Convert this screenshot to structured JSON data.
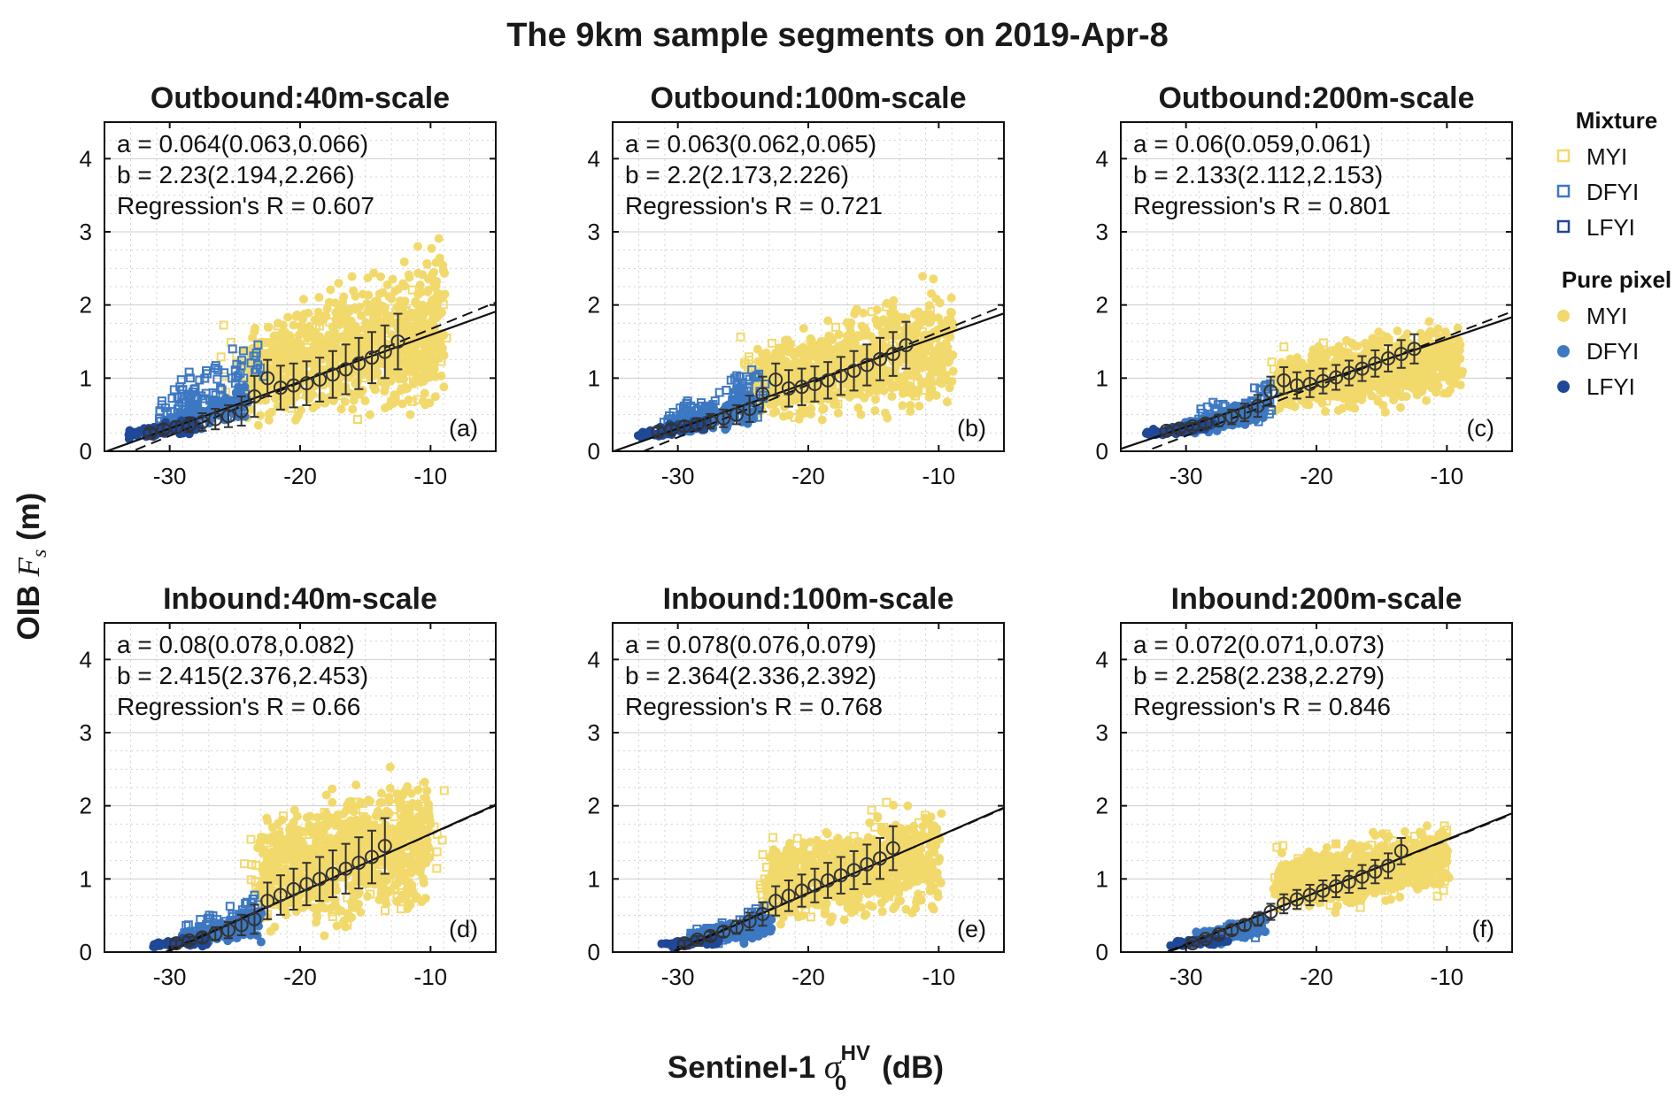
{
  "figure_title": "The 9km sample segments on 2019-Apr-8",
  "y_axis_label": {
    "prefix": "OIB",
    "symbol": "F",
    "subscript": "s",
    "unit": "(m)"
  },
  "x_axis_label": {
    "prefix": "Sentinel-1",
    "symbol": "σ",
    "subscript": "0",
    "superscript": "HV",
    "unit": "(dB)"
  },
  "legend": {
    "groups": [
      {
        "title": "Mixture",
        "marker": "square-open",
        "items": [
          {
            "label": "MYI",
            "color": "#f2d96b"
          },
          {
            "label": "DFYI",
            "color": "#3d78c2"
          },
          {
            "label": "LFYI",
            "color": "#1f4896"
          }
        ]
      },
      {
        "title": "Pure pixel",
        "marker": "circle-filled",
        "items": [
          {
            "label": "MYI",
            "color": "#f2d96b"
          },
          {
            "label": "DFYI",
            "color": "#3d78c2"
          },
          {
            "label": "LFYI",
            "color": "#1f4896"
          }
        ]
      }
    ]
  },
  "colors": {
    "myi": "#f2d96b",
    "dfyi": "#3d78c2",
    "lfyi": "#1f4896",
    "fit": "#111111",
    "grid": "#c8c8c8"
  },
  "chart_data": [
    {
      "type": "scatter",
      "panel_label": "(a)",
      "title": "Outbound:40m-scale",
      "a_line": "a = 0.064(0.063,0.066)",
      "b_line": "b = 2.23(2.194,2.266)",
      "r_line": "Regression's R = 0.607",
      "a": 0.064,
      "b": 2.23,
      "r": 0.607,
      "dashed_slope": 0.073,
      "dashed_intercept": 2.4,
      "xlim": [
        -35,
        -5
      ],
      "ylim": [
        0,
        4.5
      ],
      "xticks": [
        -30,
        -20,
        -10
      ],
      "yticks": [
        0,
        1,
        2,
        3,
        4
      ],
      "bins_x": [
        -31.5,
        -30.5,
        -29.5,
        -28.5,
        -27.5,
        -26.5,
        -25.5,
        -24.5,
        -23.5,
        -22.5,
        -21.5,
        -20.5,
        -19.5,
        -18.5,
        -17.5,
        -16.5,
        -15.5,
        -14.5,
        -13.5,
        -12.5
      ],
      "bins_mean": [
        0.25,
        0.3,
        0.33,
        0.36,
        0.4,
        0.44,
        0.48,
        0.55,
        0.75,
        1.0,
        0.87,
        0.9,
        0.93,
        0.98,
        1.05,
        1.12,
        1.2,
        1.28,
        1.36,
        1.5
      ],
      "bins_std": [
        0.05,
        0.06,
        0.08,
        0.1,
        0.12,
        0.14,
        0.15,
        0.2,
        0.28,
        0.25,
        0.3,
        0.3,
        0.3,
        0.3,
        0.32,
        0.34,
        0.35,
        0.35,
        0.36,
        0.38
      ],
      "clouds": [
        {
          "cls": "lfyi",
          "mix": false,
          "n": 70,
          "x": [
            -33,
            -28
          ],
          "ylo": [
            0.15,
            0.2
          ],
          "yhi": [
            0.3,
            0.5
          ]
        },
        {
          "cls": "dfyi",
          "mix": false,
          "n": 110,
          "x": [
            -30,
            -24
          ],
          "ylo": [
            0.15,
            0.25
          ],
          "yhi": [
            0.5,
            1.2
          ]
        },
        {
          "cls": "dfyi",
          "mix": true,
          "n": 110,
          "x": [
            -31,
            -23
          ],
          "ylo": [
            0.2,
            0.3
          ],
          "yhi": [
            0.8,
            1.9
          ]
        },
        {
          "cls": "myi",
          "mix": false,
          "n": 850,
          "x": [
            -24,
            -9
          ],
          "ylo": [
            0.2,
            0.3
          ],
          "yhi": [
            1.8,
            3.2
          ]
        },
        {
          "cls": "myi",
          "mix": true,
          "n": 110,
          "x": [
            -26,
            -9
          ],
          "ylo": [
            0.2,
            0.3
          ],
          "yhi": [
            2.0,
            2.8
          ]
        }
      ]
    },
    {
      "type": "scatter",
      "panel_label": "(b)",
      "title": "Outbound:100m-scale",
      "a_line": "a = 0.063(0.062,0.065)",
      "b_line": "b = 2.2(2.173,2.226)",
      "r_line": "Regression's R = 0.721",
      "a": 0.063,
      "b": 2.2,
      "r": 0.721,
      "dashed_slope": 0.072,
      "dashed_intercept": 2.35,
      "xlim": [
        -35,
        -5
      ],
      "ylim": [
        0,
        4.5
      ],
      "xticks": [
        -30,
        -20,
        -10
      ],
      "yticks": [
        0,
        1,
        2,
        3,
        4
      ],
      "bins_x": [
        -31.5,
        -30.5,
        -29.5,
        -28.5,
        -27.5,
        -26.5,
        -25.5,
        -24.5,
        -23.5,
        -22.5,
        -21.5,
        -20.5,
        -19.5,
        -18.5,
        -17.5,
        -16.5,
        -15.5,
        -14.5,
        -13.5,
        -12.5
      ],
      "bins_mean": [
        0.27,
        0.3,
        0.34,
        0.37,
        0.41,
        0.45,
        0.5,
        0.58,
        0.78,
        0.98,
        0.86,
        0.88,
        0.92,
        0.97,
        1.03,
        1.1,
        1.18,
        1.26,
        1.33,
        1.45
      ],
      "bins_std": [
        0.05,
        0.06,
        0.07,
        0.08,
        0.1,
        0.12,
        0.13,
        0.18,
        0.24,
        0.22,
        0.25,
        0.25,
        0.24,
        0.25,
        0.26,
        0.27,
        0.28,
        0.29,
        0.3,
        0.32
      ],
      "clouds": [
        {
          "cls": "lfyi",
          "mix": false,
          "n": 70,
          "x": [
            -33,
            -28
          ],
          "ylo": [
            0.15,
            0.22
          ],
          "yhi": [
            0.3,
            0.5
          ]
        },
        {
          "cls": "dfyi",
          "mix": false,
          "n": 110,
          "x": [
            -30,
            -24
          ],
          "ylo": [
            0.15,
            0.25
          ],
          "yhi": [
            0.5,
            1.0
          ]
        },
        {
          "cls": "dfyi",
          "mix": true,
          "n": 100,
          "x": [
            -31,
            -23
          ],
          "ylo": [
            0.2,
            0.3
          ],
          "yhi": [
            0.6,
            1.6
          ]
        },
        {
          "cls": "myi",
          "mix": false,
          "n": 800,
          "x": [
            -24,
            -9
          ],
          "ylo": [
            0.25,
            0.35
          ],
          "yhi": [
            1.6,
            2.6
          ]
        },
        {
          "cls": "myi",
          "mix": true,
          "n": 90,
          "x": [
            -25,
            -10
          ],
          "ylo": [
            0.25,
            0.35
          ],
          "yhi": [
            1.8,
            2.3
          ]
        }
      ]
    },
    {
      "type": "scatter",
      "panel_label": "(c)",
      "title": "Outbound:200m-scale",
      "a_line": "a = 0.06(0.059,0.061)",
      "b_line": "b = 2.133(2.112,2.153)",
      "r_line": "Regression's R = 0.801",
      "a": 0.06,
      "b": 2.133,
      "r": 0.801,
      "dashed_slope": 0.068,
      "dashed_intercept": 2.25,
      "xlim": [
        -35,
        -5
      ],
      "ylim": [
        0,
        4.5
      ],
      "xticks": [
        -30,
        -20,
        -10
      ],
      "yticks": [
        0,
        1,
        2,
        3,
        4
      ],
      "bins_x": [
        -31.5,
        -30.5,
        -29.5,
        -28.5,
        -27.5,
        -26.5,
        -25.5,
        -24.5,
        -23.5,
        -22.5,
        -21.5,
        -20.5,
        -19.5,
        -18.5,
        -17.5,
        -16.5,
        -15.5,
        -14.5,
        -13.5,
        -12.5
      ],
      "bins_mean": [
        0.28,
        0.31,
        0.34,
        0.38,
        0.42,
        0.47,
        0.53,
        0.62,
        0.82,
        0.97,
        0.9,
        0.92,
        0.96,
        1.01,
        1.07,
        1.13,
        1.2,
        1.27,
        1.33,
        1.4
      ],
      "bins_std": [
        0.04,
        0.05,
        0.05,
        0.06,
        0.08,
        0.1,
        0.12,
        0.15,
        0.2,
        0.18,
        0.18,
        0.18,
        0.17,
        0.17,
        0.17,
        0.17,
        0.18,
        0.18,
        0.19,
        0.2
      ],
      "clouds": [
        {
          "cls": "lfyi",
          "mix": false,
          "n": 70,
          "x": [
            -33,
            -28
          ],
          "ylo": [
            0.18,
            0.25
          ],
          "yhi": [
            0.3,
            0.45
          ]
        },
        {
          "cls": "dfyi",
          "mix": false,
          "n": 110,
          "x": [
            -30,
            -24
          ],
          "ylo": [
            0.2,
            0.3
          ],
          "yhi": [
            0.45,
            0.8
          ]
        },
        {
          "cls": "dfyi",
          "mix": true,
          "n": 80,
          "x": [
            -30,
            -23
          ],
          "ylo": [
            0.2,
            0.3
          ],
          "yhi": [
            0.5,
            1.2
          ]
        },
        {
          "cls": "myi",
          "mix": false,
          "n": 750,
          "x": [
            -23,
            -9
          ],
          "ylo": [
            0.4,
            0.55
          ],
          "yhi": [
            1.4,
            2.0
          ]
        },
        {
          "cls": "myi",
          "mix": true,
          "n": 60,
          "x": [
            -24,
            -10
          ],
          "ylo": [
            0.4,
            0.5
          ],
          "yhi": [
            1.5,
            2.0
          ]
        }
      ]
    },
    {
      "type": "scatter",
      "panel_label": "(d)",
      "title": "Inbound:40m-scale",
      "a_line": "a = 0.08(0.078,0.082)",
      "b_line": "b = 2.415(2.376,2.453)",
      "r_line": "Regression's R = 0.66",
      "a": 0.08,
      "b": 2.415,
      "r": 0.66,
      "dashed_slope": 0.079,
      "dashed_intercept": 2.4,
      "xlim": [
        -35,
        -5
      ],
      "ylim": [
        0,
        4.5
      ],
      "xticks": [
        -30,
        -20,
        -10
      ],
      "yticks": [
        0,
        1,
        2,
        3,
        4
      ],
      "bins_x": [
        -29.5,
        -28.5,
        -27.5,
        -26.5,
        -25.5,
        -24.5,
        -23.5,
        -22.5,
        -21.5,
        -20.5,
        -19.5,
        -18.5,
        -17.5,
        -16.5,
        -15.5,
        -14.5,
        -13.5
      ],
      "bins_mean": [
        0.12,
        0.16,
        0.2,
        0.25,
        0.3,
        0.37,
        0.45,
        0.7,
        0.78,
        0.86,
        0.93,
        1.0,
        1.07,
        1.14,
        1.22,
        1.3,
        1.45
      ],
      "bins_std": [
        0.04,
        0.05,
        0.07,
        0.09,
        0.11,
        0.14,
        0.2,
        0.25,
        0.27,
        0.28,
        0.29,
        0.3,
        0.32,
        0.34,
        0.35,
        0.36,
        0.38
      ],
      "clouds": [
        {
          "cls": "lfyi",
          "mix": false,
          "n": 60,
          "x": [
            -31,
            -27
          ],
          "ylo": [
            0.05,
            0.06
          ],
          "yhi": [
            0.15,
            0.25
          ]
        },
        {
          "cls": "dfyi",
          "mix": false,
          "n": 110,
          "x": [
            -29,
            -23
          ],
          "ylo": [
            0.05,
            0.1
          ],
          "yhi": [
            0.3,
            0.7
          ]
        },
        {
          "cls": "dfyi",
          "mix": true,
          "n": 80,
          "x": [
            -29,
            -23
          ],
          "ylo": [
            0.05,
            0.1
          ],
          "yhi": [
            0.4,
            1.0
          ]
        },
        {
          "cls": "myi",
          "mix": false,
          "n": 850,
          "x": [
            -23,
            -10
          ],
          "ylo": [
            0.1,
            0.2
          ],
          "yhi": [
            2.0,
            2.9
          ]
        },
        {
          "cls": "myi",
          "mix": true,
          "n": 120,
          "x": [
            -24,
            -9
          ],
          "ylo": [
            0.1,
            0.2
          ],
          "yhi": [
            2.1,
            2.9
          ]
        }
      ]
    },
    {
      "type": "scatter",
      "panel_label": "(e)",
      "title": "Inbound:100m-scale",
      "a_line": "a = 0.078(0.076,0.079)",
      "b_line": "b = 2.364(2.336,2.392)",
      "r_line": "Regression's R = 0.768",
      "a": 0.078,
      "b": 2.364,
      "r": 0.768,
      "dashed_slope": 0.077,
      "dashed_intercept": 2.35,
      "xlim": [
        -35,
        -5
      ],
      "ylim": [
        0,
        4.5
      ],
      "xticks": [
        -30,
        -20,
        -10
      ],
      "yticks": [
        0,
        1,
        2,
        3,
        4
      ],
      "bins_x": [
        -29.5,
        -28.5,
        -27.5,
        -26.5,
        -25.5,
        -24.5,
        -23.5,
        -22.5,
        -21.5,
        -20.5,
        -19.5,
        -18.5,
        -17.5,
        -16.5,
        -15.5,
        -14.5,
        -13.5
      ],
      "bins_mean": [
        0.12,
        0.17,
        0.22,
        0.28,
        0.34,
        0.42,
        0.52,
        0.7,
        0.77,
        0.84,
        0.91,
        0.98,
        1.05,
        1.12,
        1.2,
        1.28,
        1.42
      ],
      "bins_std": [
        0.04,
        0.05,
        0.06,
        0.07,
        0.09,
        0.12,
        0.16,
        0.2,
        0.21,
        0.22,
        0.23,
        0.24,
        0.25,
        0.26,
        0.27,
        0.28,
        0.3
      ],
      "clouds": [
        {
          "cls": "lfyi",
          "mix": false,
          "n": 60,
          "x": [
            -31,
            -27
          ],
          "ylo": [
            0.05,
            0.07
          ],
          "yhi": [
            0.15,
            0.25
          ]
        },
        {
          "cls": "dfyi",
          "mix": false,
          "n": 110,
          "x": [
            -29,
            -23
          ],
          "ylo": [
            0.06,
            0.12
          ],
          "yhi": [
            0.3,
            0.6
          ]
        },
        {
          "cls": "dfyi",
          "mix": true,
          "n": 70,
          "x": [
            -29,
            -23
          ],
          "ylo": [
            0.06,
            0.12
          ],
          "yhi": [
            0.35,
            0.75
          ]
        },
        {
          "cls": "myi",
          "mix": false,
          "n": 800,
          "x": [
            -23,
            -10
          ],
          "ylo": [
            0.2,
            0.35
          ],
          "yhi": [
            1.6,
            2.3
          ]
        },
        {
          "cls": "myi",
          "mix": true,
          "n": 100,
          "x": [
            -24,
            -10
          ],
          "ylo": [
            0.2,
            0.3
          ],
          "yhi": [
            1.7,
            2.5
          ]
        }
      ]
    },
    {
      "type": "scatter",
      "panel_label": "(f)",
      "title": "Inbound:200m-scale",
      "a_line": "a = 0.072(0.071,0.073)",
      "b_line": "b = 2.258(2.238,2.279)",
      "r_line": "Regression's R = 0.846",
      "a": 0.072,
      "b": 2.258,
      "r": 0.846,
      "dashed_slope": 0.071,
      "dashed_intercept": 2.24,
      "xlim": [
        -35,
        -5
      ],
      "ylim": [
        0,
        4.5
      ],
      "xticks": [
        -30,
        -20,
        -10
      ],
      "yticks": [
        0,
        1,
        2,
        3,
        4
      ],
      "bins_x": [
        -29.5,
        -28.5,
        -27.5,
        -26.5,
        -25.5,
        -24.5,
        -23.5,
        -22.5,
        -21.5,
        -20.5,
        -19.5,
        -18.5,
        -17.5,
        -16.5,
        -15.5,
        -14.5,
        -13.5
      ],
      "bins_mean": [
        0.12,
        0.18,
        0.24,
        0.3,
        0.37,
        0.45,
        0.55,
        0.66,
        0.72,
        0.78,
        0.84,
        0.9,
        0.96,
        1.03,
        1.1,
        1.18,
        1.38
      ],
      "bins_std": [
        0.03,
        0.04,
        0.05,
        0.06,
        0.07,
        0.09,
        0.11,
        0.13,
        0.13,
        0.14,
        0.14,
        0.15,
        0.15,
        0.16,
        0.16,
        0.17,
        0.18
      ],
      "clouds": [
        {
          "cls": "lfyi",
          "mix": false,
          "n": 60,
          "x": [
            -31,
            -27
          ],
          "ylo": [
            0.06,
            0.08
          ],
          "yhi": [
            0.15,
            0.25
          ]
        },
        {
          "cls": "dfyi",
          "mix": false,
          "n": 110,
          "x": [
            -29,
            -24
          ],
          "ylo": [
            0.08,
            0.15
          ],
          "yhi": [
            0.3,
            0.55
          ]
        },
        {
          "cls": "dfyi",
          "mix": true,
          "n": 60,
          "x": [
            -29,
            -24
          ],
          "ylo": [
            0.08,
            0.15
          ],
          "yhi": [
            0.3,
            0.6
          ]
        },
        {
          "cls": "myi",
          "mix": false,
          "n": 750,
          "x": [
            -23,
            -10
          ],
          "ylo": [
            0.4,
            0.7
          ],
          "yhi": [
            1.4,
            1.9
          ]
        },
        {
          "cls": "myi",
          "mix": true,
          "n": 80,
          "x": [
            -23,
            -10
          ],
          "ylo": [
            0.4,
            0.6
          ],
          "yhi": [
            1.5,
            1.9
          ]
        }
      ]
    }
  ]
}
